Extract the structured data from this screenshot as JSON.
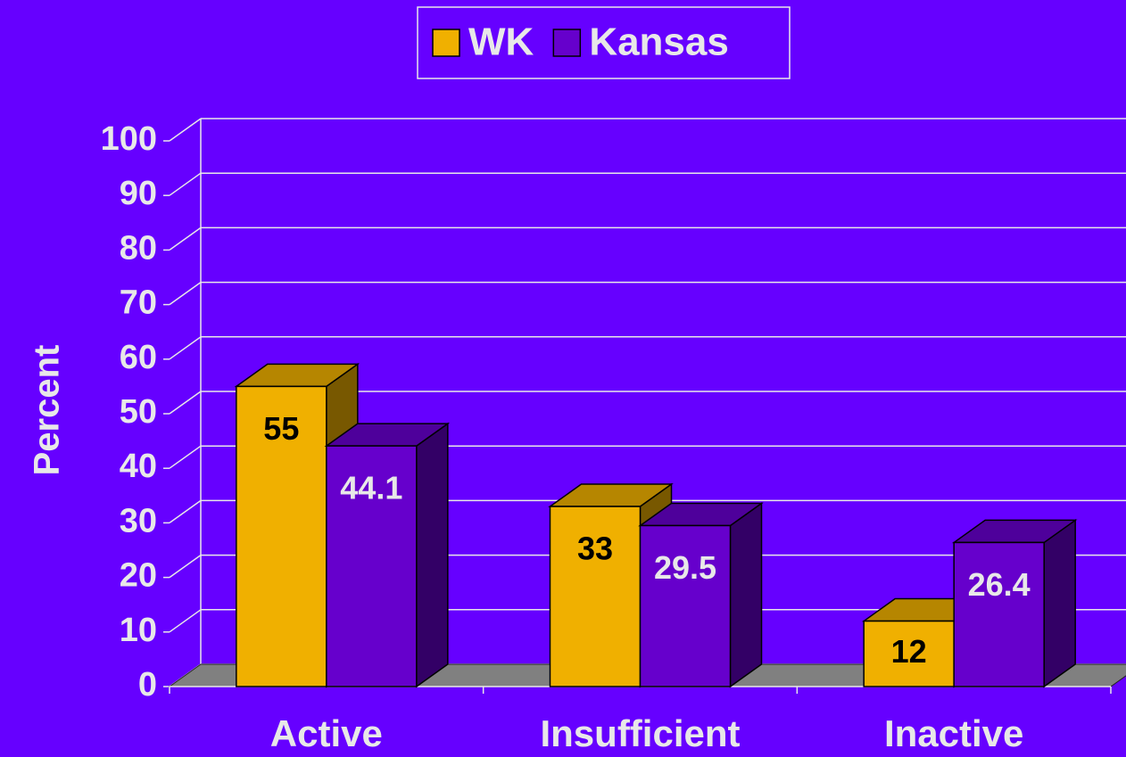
{
  "chart_data": {
    "type": "bar",
    "categories": [
      "Active",
      "Insufficient",
      "Inactive"
    ],
    "series": [
      {
        "name": "WK",
        "color": "#f0b000",
        "values": [
          55,
          33,
          12
        ]
      },
      {
        "name": "Kansas",
        "color": "#6600cc",
        "values": [
          44.1,
          29.5,
          26.4
        ]
      }
    ],
    "ylabel": "Percent",
    "ylim": [
      0,
      100
    ],
    "yticks": [
      0,
      10,
      20,
      30,
      40,
      50,
      60,
      70,
      80,
      90,
      100
    ],
    "grid": true,
    "legend": "top"
  }
}
